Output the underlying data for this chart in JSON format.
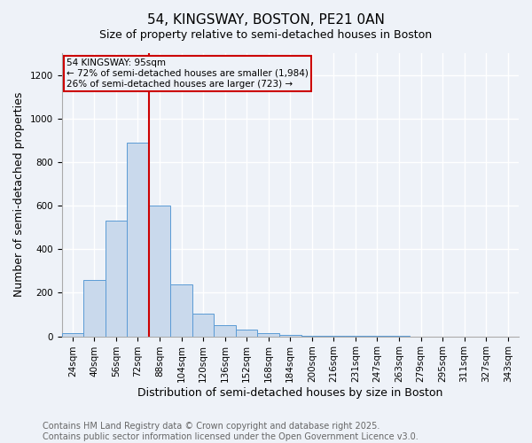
{
  "title": "54, KINGSWAY, BOSTON, PE21 0AN",
  "subtitle": "Size of property relative to semi-detached houses in Boston",
  "xlabel": "Distribution of semi-detached houses by size in Boston",
  "ylabel": "Number of semi-detached properties",
  "bar_labels": [
    "24sqm",
    "40sqm",
    "56sqm",
    "72sqm",
    "88sqm",
    "104sqm",
    "120sqm",
    "136sqm",
    "152sqm",
    "168sqm",
    "184sqm",
    "200sqm",
    "216sqm",
    "231sqm",
    "247sqm",
    "263sqm",
    "279sqm",
    "295sqm",
    "311sqm",
    "327sqm",
    "343sqm"
  ],
  "bar_values": [
    15,
    260,
    530,
    890,
    600,
    240,
    105,
    50,
    30,
    15,
    5,
    3,
    2,
    1,
    1,
    1,
    0,
    0,
    0,
    0,
    0
  ],
  "bar_color": "#c9d9ec",
  "bar_edge_color": "#5b9bd5",
  "property_line_label": "54 KINGSWAY: 95sqm",
  "annotation_smaller": "← 72% of semi-detached houses are smaller (1,984)",
  "annotation_larger": "26% of semi-detached houses are larger (723) →",
  "annotation_box_color": "#cc0000",
  "ylim": [
    0,
    1300
  ],
  "yticks": [
    0,
    200,
    400,
    600,
    800,
    1000,
    1200
  ],
  "footer1": "Contains HM Land Registry data © Crown copyright and database right 2025.",
  "footer2": "Contains public sector information licensed under the Open Government Licence v3.0.",
  "background_color": "#eef2f8",
  "grid_color": "#ffffff",
  "title_fontsize": 11,
  "axis_label_fontsize": 9,
  "tick_fontsize": 7.5,
  "footer_fontsize": 7
}
